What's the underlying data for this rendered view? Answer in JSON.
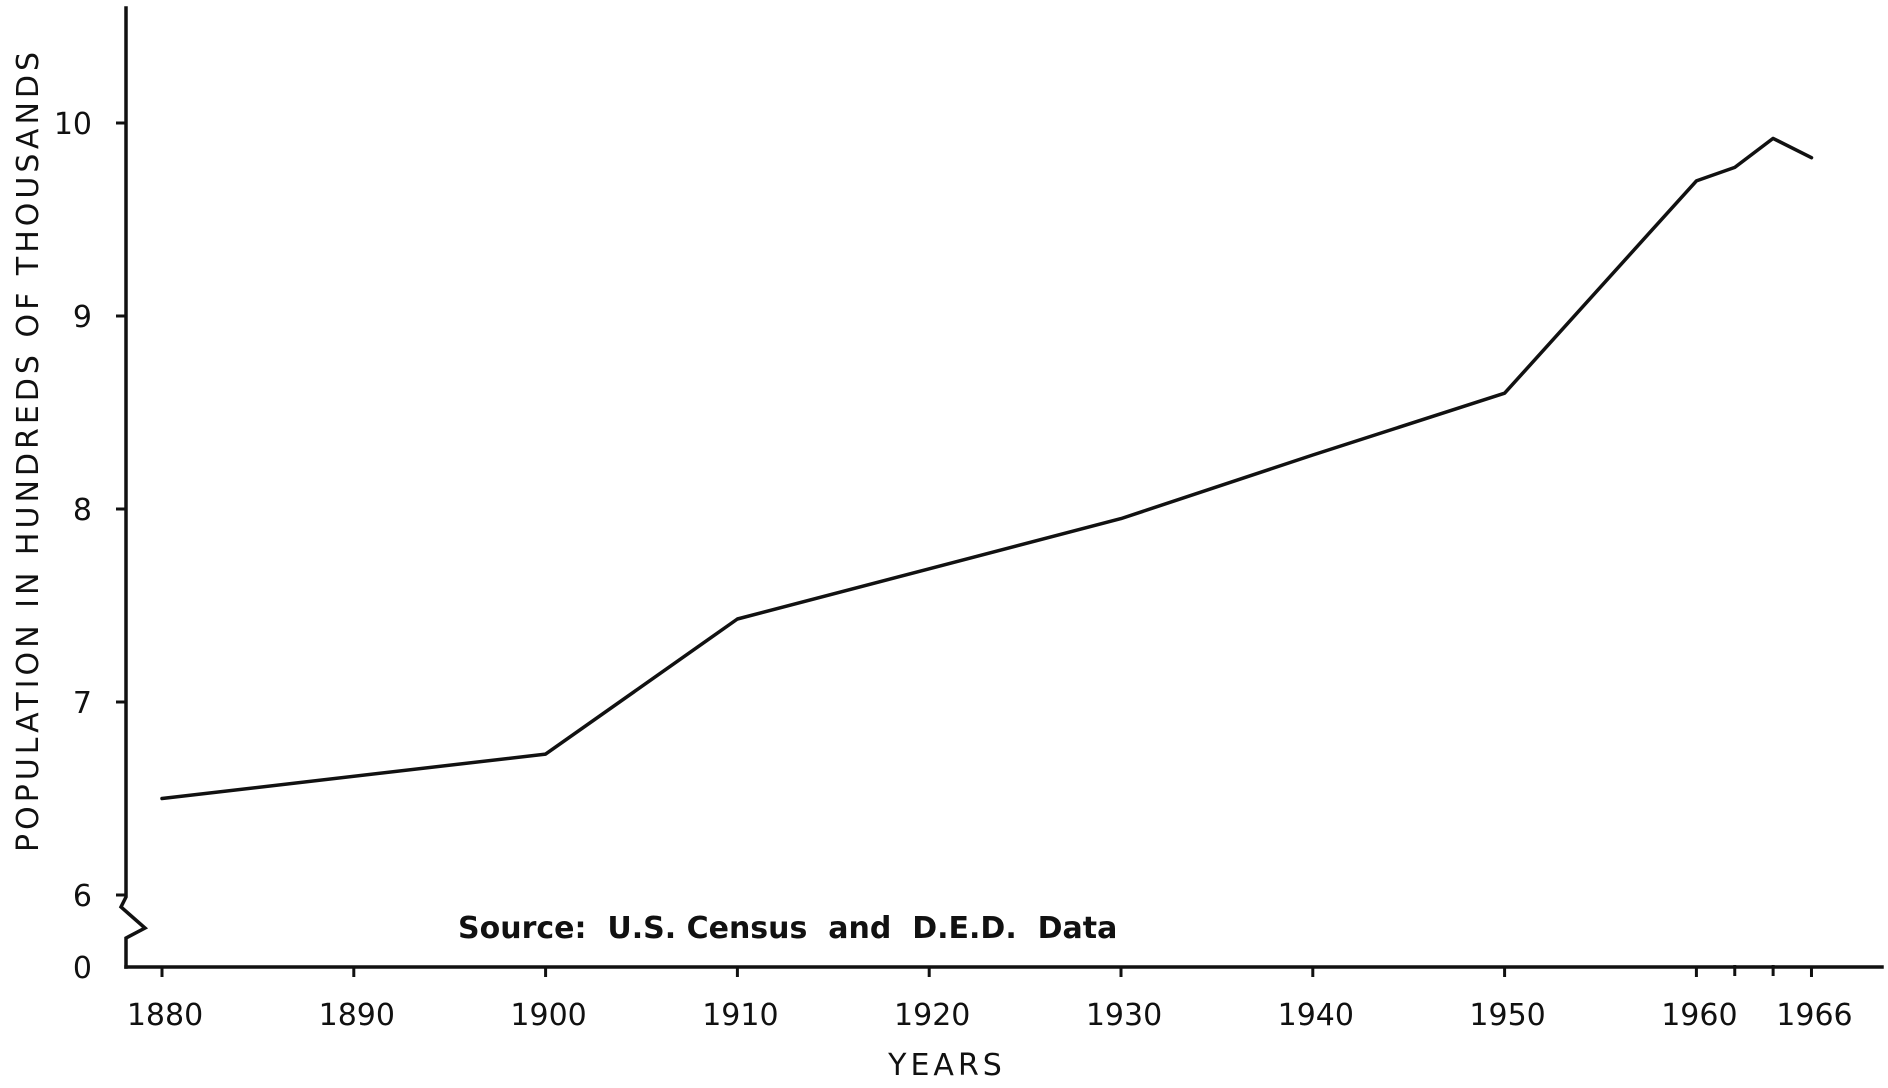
{
  "chart_data": {
    "type": "line",
    "title": "",
    "xlabel": "YEARS",
    "ylabel": "POPULATION IN HUNDREDS OF THOUSANDS",
    "x_ticks": [
      "1880",
      "1890",
      "1900",
      "1910",
      "1920",
      "1930",
      "1940",
      "1950",
      "1960",
      "1966"
    ],
    "y_ticks": [
      "0",
      "6",
      "7",
      "8",
      "9",
      "10"
    ],
    "xlim": [
      1878,
      1970
    ],
    "ylim": [
      6,
      10.6
    ],
    "y_axis_break": true,
    "grid": false,
    "series": [
      {
        "points": [
          {
            "x": 1880,
            "y": 6.5
          },
          {
            "x": 1900,
            "y": 6.73
          },
          {
            "x": 1910,
            "y": 7.43
          },
          {
            "x": 1920,
            "y": 7.69
          },
          {
            "x": 1930,
            "y": 7.95
          },
          {
            "x": 1940,
            "y": 8.28
          },
          {
            "x": 1950,
            "y": 8.6
          },
          {
            "x": 1960,
            "y": 9.7
          },
          {
            "x": 1962,
            "y": 9.77
          },
          {
            "x": 1964,
            "y": 9.92
          },
          {
            "x": 1966,
            "y": 9.82
          }
        ]
      }
    ],
    "annotation": "Source:  U.S. Census  and  D.E.D.  Data"
  }
}
